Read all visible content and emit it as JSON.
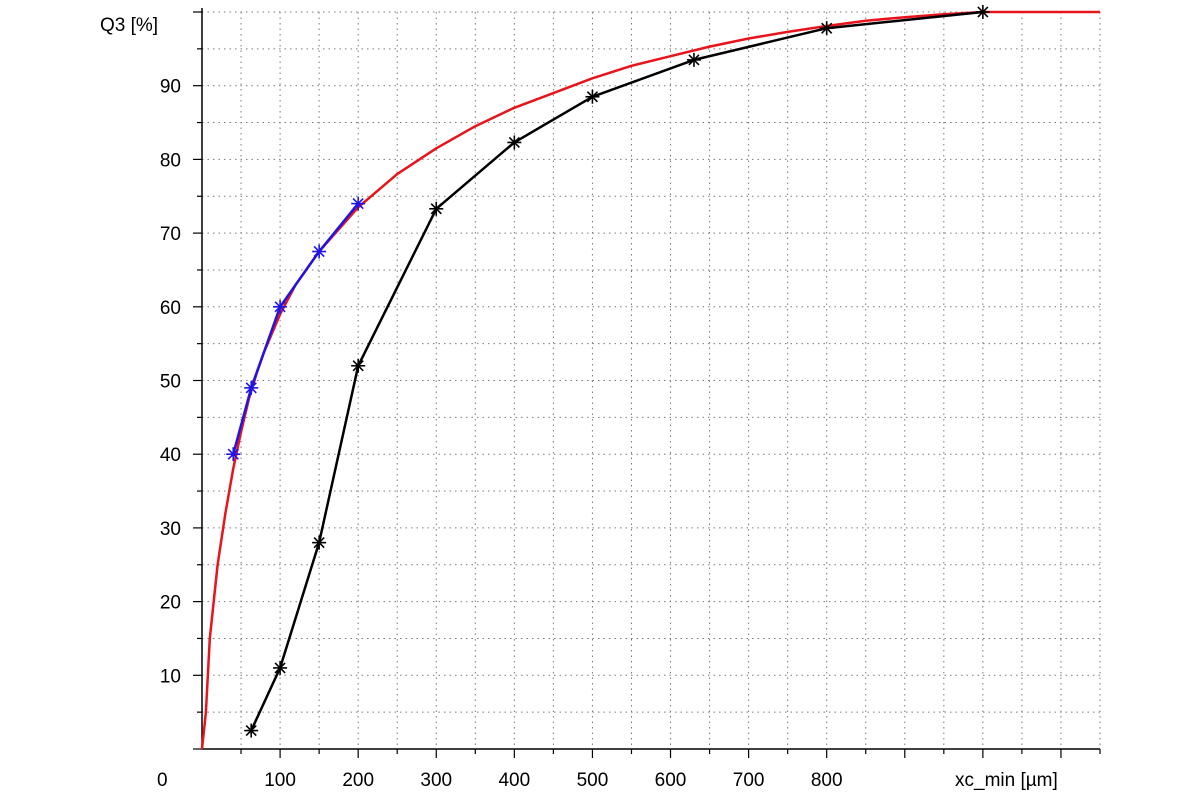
{
  "chart_data": {
    "type": "line",
    "ylabel": "Q3 [%]",
    "xlabel": "xc_min [µm]",
    "origin_label": "0",
    "xlim": [
      0,
      1150
    ],
    "ylim": [
      0,
      100
    ],
    "grid": true,
    "x_ticks": [
      {
        "value": 100,
        "label": "100"
      },
      {
        "value": 200,
        "label": "200"
      },
      {
        "value": 300,
        "label": "300"
      },
      {
        "value": 400,
        "label": "400"
      },
      {
        "value": 500,
        "label": "500"
      },
      {
        "value": 600,
        "label": "600"
      },
      {
        "value": 700,
        "label": "700"
      },
      {
        "value": 800,
        "label": "800"
      }
    ],
    "y_ticks": [
      {
        "value": 10,
        "label": "10"
      },
      {
        "value": 20,
        "label": "20"
      },
      {
        "value": 30,
        "label": "30"
      },
      {
        "value": 40,
        "label": "40"
      },
      {
        "value": 50,
        "label": "50"
      },
      {
        "value": 60,
        "label": "60"
      },
      {
        "value": 70,
        "label": "70"
      },
      {
        "value": 80,
        "label": "80"
      },
      {
        "value": 90,
        "label": "90"
      }
    ],
    "series": [
      {
        "color": "#e8141b",
        "markers": false,
        "x": [
          0,
          5,
          10,
          20,
          30,
          40,
          50,
          60,
          70,
          80,
          100,
          120,
          150,
          200,
          250,
          300,
          350,
          400,
          450,
          500,
          550,
          600,
          650,
          700,
          750,
          800,
          850,
          900,
          950,
          1000,
          1150
        ],
        "y": [
          0,
          5,
          15,
          25,
          32,
          38,
          43,
          47.5,
          51,
          54,
          59,
          63,
          67.5,
          73.5,
          78,
          81.5,
          84.5,
          87,
          89,
          91,
          92.7,
          94,
          95.3,
          96.4,
          97.3,
          98.1,
          98.8,
          99.3,
          99.7,
          100,
          100
        ]
      },
      {
        "color": "#1f14e6",
        "markers": true,
        "x": [
          40,
          63,
          100,
          150,
          200
        ],
        "y": [
          40,
          49,
          60,
          67.5,
          74
        ]
      },
      {
        "color": "#000000",
        "markers": true,
        "x": [
          63,
          100,
          150,
          200,
          300,
          400,
          500,
          630,
          800,
          1000
        ],
        "y": [
          2.5,
          11,
          28,
          52,
          73.3,
          82.3,
          88.5,
          93.5,
          97.8,
          100
        ]
      }
    ]
  }
}
